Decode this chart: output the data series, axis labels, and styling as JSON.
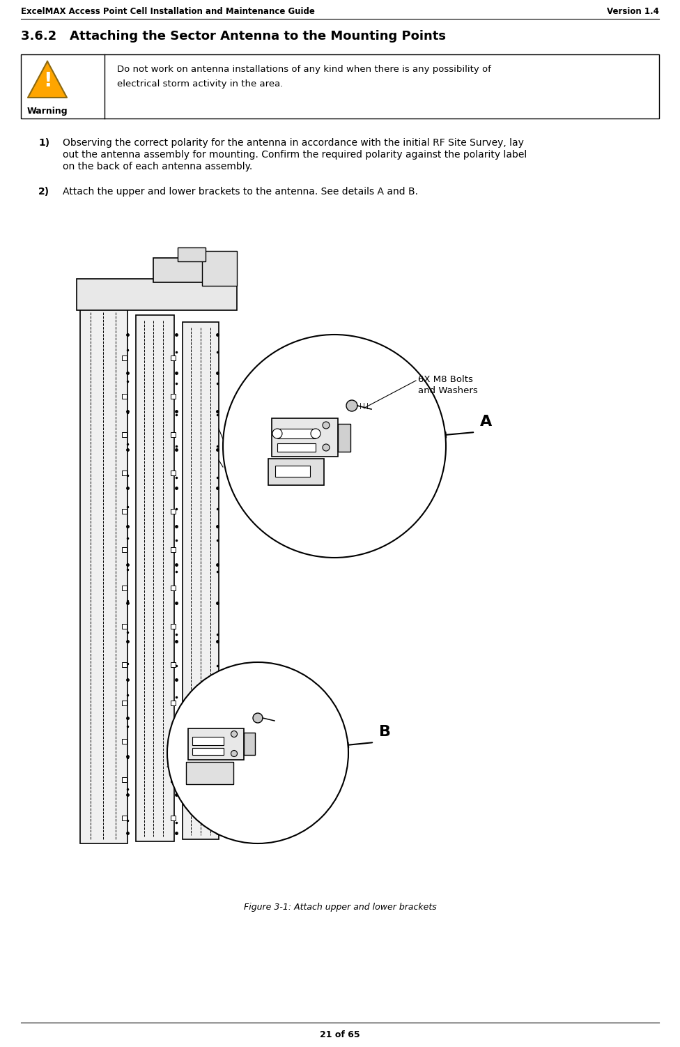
{
  "header_left": "ExcelMAX Access Point Cell Installation and Maintenance Guide",
  "header_right": "Version 1.4",
  "section_title": "3.6.2   Attaching the Sector Antenna to the Mounting Points",
  "warning_label": "Warning",
  "warning_line1": "Do not work on antenna installations of any kind when there is any possibility of",
  "warning_line2": "electrical storm activity in the area.",
  "step1_num": "1)",
  "step1_lines": [
    "Observing the correct polarity for the antenna in accordance with the initial RF Site Survey, lay",
    "out the antenna assembly for mounting. Confirm the required polarity against the polarity label",
    "on the back of each antenna assembly."
  ],
  "step2_num": "2)",
  "step2_text": "Attach the upper and lower brackets to the antenna. See details A and B.",
  "figure_caption": "Figure 3-1: Attach upper and lower brackets",
  "page_footer": "21 of 65",
  "bolt_label_line1": "6X M8 Bolts",
  "bolt_label_line2": "and Washers",
  "label_A": "A",
  "label_B": "B",
  "bg_color": "#ffffff",
  "text_color": "#000000"
}
